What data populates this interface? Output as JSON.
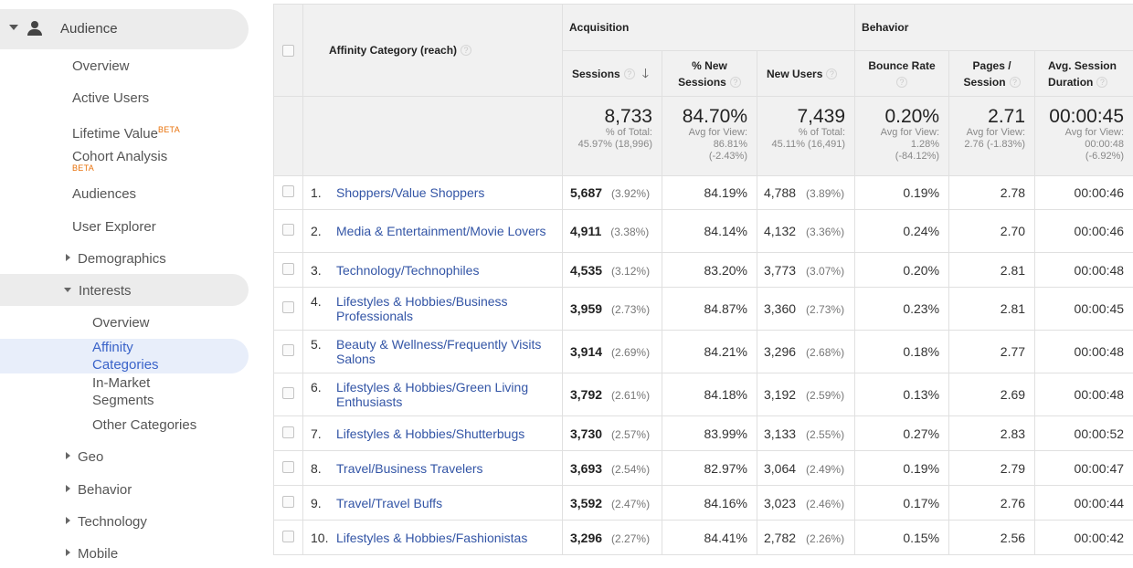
{
  "sidebar": {
    "section_label": "Audience",
    "items": {
      "overview": "Overview",
      "active_users": "Active Users",
      "lifetime_value": "Lifetime Value",
      "lifetime_value_badge": "BETA",
      "cohort_analysis": "Cohort Analysis",
      "cohort_analysis_badge": "BETA",
      "audiences": "Audiences",
      "user_explorer": "User Explorer",
      "demographics": "Demographics",
      "interests": "Interests",
      "interests_overview": "Overview",
      "affinity_categories_line1": "Affinity",
      "affinity_categories_line2": "Categories",
      "in_market_line1": "In-Market",
      "in_market_line2": "Segments",
      "other_categories": "Other Categories",
      "geo": "Geo",
      "behavior": "Behavior",
      "technology": "Technology",
      "mobile": "Mobile"
    }
  },
  "table": {
    "dimension_header": "Affinity Category (reach)",
    "group_acquisition": "Acquisition",
    "group_behavior": "Behavior",
    "columns": {
      "sessions": "Sessions",
      "new_sessions_line1": "% New",
      "new_sessions_line2": "Sessions",
      "new_users": "New Users",
      "bounce_rate": "Bounce Rate",
      "pages_line1": "Pages /",
      "pages_line2": "Session",
      "duration_line1": "Avg. Session",
      "duration_line2": "Duration"
    },
    "help_glyph": "?",
    "sort_glyph": "🡓",
    "totals": {
      "sessions": {
        "value": "8,733",
        "line1": "% of Total:",
        "line2": "45.97% (18,996)"
      },
      "new_sessions": {
        "value": "84.70%",
        "line1": "Avg for View:",
        "line2": "86.81%",
        "line3": "(-2.43%)"
      },
      "new_users": {
        "value": "7,439",
        "line1": "% of Total:",
        "line2": "45.11% (16,491)"
      },
      "bounce_rate": {
        "value": "0.20%",
        "line1": "Avg for View:",
        "line2": "1.28%",
        "line3": "(-84.12%)"
      },
      "pages": {
        "value": "2.71",
        "line1": "Avg for View:",
        "line2": "2.76 (-1.83%)"
      },
      "duration": {
        "value": "00:00:45",
        "line1": "Avg for View:",
        "line2": "00:00:48",
        "line3": "(-6.92%)"
      }
    },
    "rows": [
      {
        "num": "1.",
        "name": "Shoppers/Value Shoppers",
        "sessions": "5,687",
        "sessions_pct": "(3.92%)",
        "new_sessions": "84.19%",
        "new_users": "4,788",
        "new_users_pct": "(3.89%)",
        "bounce": "0.19%",
        "pages": "2.78",
        "duration": "00:00:46"
      },
      {
        "num": "2.",
        "name": "Media & Entertainment/Movie Lovers",
        "sessions": "4,911",
        "sessions_pct": "(3.38%)",
        "new_sessions": "84.14%",
        "new_users": "4,132",
        "new_users_pct": "(3.36%)",
        "bounce": "0.24%",
        "pages": "2.70",
        "duration": "00:00:46"
      },
      {
        "num": "3.",
        "name": "Technology/Technophiles",
        "sessions": "4,535",
        "sessions_pct": "(3.12%)",
        "new_sessions": "83.20%",
        "new_users": "3,773",
        "new_users_pct": "(3.07%)",
        "bounce": "0.20%",
        "pages": "2.81",
        "duration": "00:00:48"
      },
      {
        "num": "4.",
        "name": "Lifestyles & Hobbies/Business Professionals",
        "sessions": "3,959",
        "sessions_pct": "(2.73%)",
        "new_sessions": "84.87%",
        "new_users": "3,360",
        "new_users_pct": "(2.73%)",
        "bounce": "0.23%",
        "pages": "2.81",
        "duration": "00:00:45"
      },
      {
        "num": "5.",
        "name": "Beauty & Wellness/Frequently Visits Salons",
        "sessions": "3,914",
        "sessions_pct": "(2.69%)",
        "new_sessions": "84.21%",
        "new_users": "3,296",
        "new_users_pct": "(2.68%)",
        "bounce": "0.18%",
        "pages": "2.77",
        "duration": "00:00:48"
      },
      {
        "num": "6.",
        "name": "Lifestyles & Hobbies/Green Living Enthusiasts",
        "sessions": "3,792",
        "sessions_pct": "(2.61%)",
        "new_sessions": "84.18%",
        "new_users": "3,192",
        "new_users_pct": "(2.59%)",
        "bounce": "0.13%",
        "pages": "2.69",
        "duration": "00:00:48"
      },
      {
        "num": "7.",
        "name": "Lifestyles & Hobbies/Shutterbugs",
        "sessions": "3,730",
        "sessions_pct": "(2.57%)",
        "new_sessions": "83.99%",
        "new_users": "3,133",
        "new_users_pct": "(2.55%)",
        "bounce": "0.27%",
        "pages": "2.83",
        "duration": "00:00:52"
      },
      {
        "num": "8.",
        "name": "Travel/Business Travelers",
        "sessions": "3,693",
        "sessions_pct": "(2.54%)",
        "new_sessions": "82.97%",
        "new_users": "3,064",
        "new_users_pct": "(2.49%)",
        "bounce": "0.19%",
        "pages": "2.79",
        "duration": "00:00:47"
      },
      {
        "num": "9.",
        "name": "Travel/Travel Buffs",
        "sessions": "3,592",
        "sessions_pct": "(2.47%)",
        "new_sessions": "84.16%",
        "new_users": "3,023",
        "new_users_pct": "(2.46%)",
        "bounce": "0.17%",
        "pages": "2.76",
        "duration": "00:00:44"
      },
      {
        "num": "10.",
        "name": "Lifestyles & Hobbies/Fashionistas",
        "sessions": "3,296",
        "sessions_pct": "(2.27%)",
        "new_sessions": "84.41%",
        "new_users": "2,782",
        "new_users_pct": "(2.26%)",
        "bounce": "0.15%",
        "pages": "2.56",
        "duration": "00:00:42"
      }
    ]
  }
}
